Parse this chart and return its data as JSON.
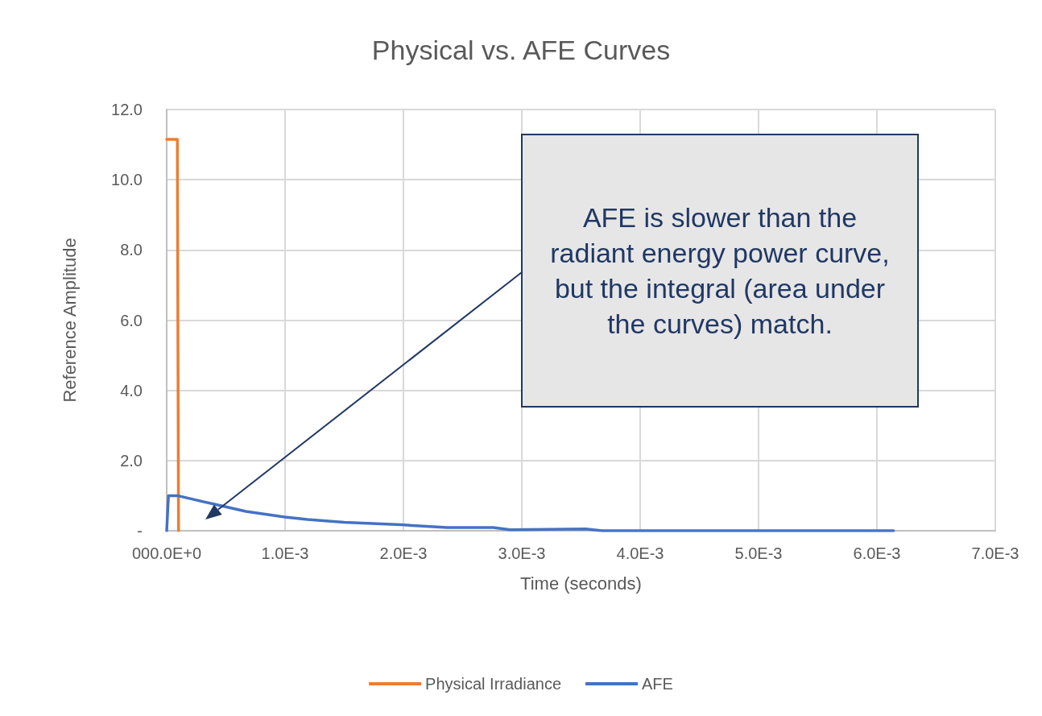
{
  "chart_data": {
    "type": "line",
    "title": "Physical vs. AFE Curves",
    "xlabel": "Time (seconds)",
    "ylabel": "Reference Amplitude",
    "series": [
      {
        "name": "Physical Irradiance",
        "color": "#ed7d31",
        "x": [
          0,
          9e-05,
          0.0001
        ],
        "values": [
          11.15,
          11.15,
          0
        ]
      },
      {
        "name": "AFE",
        "color": "#4472c4",
        "x": [
          0,
          1.5e-05,
          9e-05,
          0.00041,
          0.00067,
          0.001,
          0.00119,
          0.0015,
          0.00198,
          0.00237,
          0.00276,
          0.0029,
          0.00354,
          0.00368,
          0.00614
        ],
        "values": [
          0,
          1.0,
          1.0,
          0.75,
          0.55,
          0.39,
          0.32,
          0.24,
          0.17,
          0.09,
          0.09,
          0.03,
          0.05,
          0,
          0
        ]
      }
    ],
    "xlim": [
      0,
      0.007
    ],
    "xticks": [
      {
        "value": 0,
        "label": "000.0E+0"
      },
      {
        "value": 0.001,
        "label": "1.0E-3"
      },
      {
        "value": 0.002,
        "label": "2.0E-3"
      },
      {
        "value": 0.003,
        "label": "3.0E-3"
      },
      {
        "value": 0.004,
        "label": "4.0E-3"
      },
      {
        "value": 0.005,
        "label": "5.0E-3"
      },
      {
        "value": 0.006,
        "label": "6.0E-3"
      },
      {
        "value": 0.007,
        "label": "7.0E-3"
      }
    ],
    "ylim": [
      0,
      12
    ],
    "yticks": [
      {
        "value": 0,
        "label": "-"
      },
      {
        "value": 2,
        "label": "2.0"
      },
      {
        "value": 4,
        "label": "4.0"
      },
      {
        "value": 6,
        "label": "6.0"
      },
      {
        "value": 8,
        "label": "8.0"
      },
      {
        "value": 10,
        "label": "10.0"
      },
      {
        "value": 12,
        "label": "12.0"
      }
    ],
    "annotations": [
      "AFE is slower than the radiant energy power curve, but the integral (area under the curves) match."
    ],
    "grid": true,
    "legend": "bottom",
    "marker": "none",
    "line_style": "solid"
  }
}
